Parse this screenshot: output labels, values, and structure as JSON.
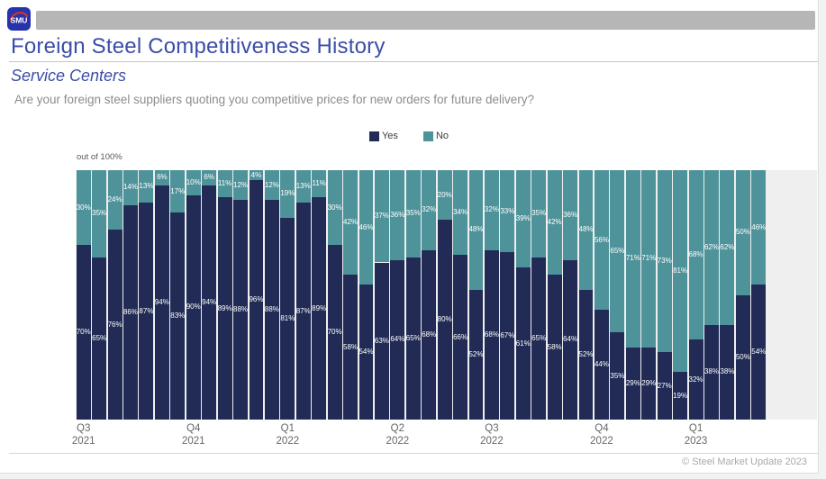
{
  "header": {
    "logo_text": "SMU",
    "title": "Foreign Steel Competitiveness History",
    "subtitle": "Service Centers",
    "question": "Are your foreign steel suppliers quoting you competitive prices for new orders for future delivery?"
  },
  "legend": {
    "yes": {
      "label": "Yes",
      "color": "#212b55"
    },
    "no": {
      "label": "No",
      "color": "#4f939a"
    }
  },
  "chart_data": {
    "type": "bar",
    "stacked": true,
    "axis_note": "out of 100%",
    "ylim": [
      0,
      100
    ],
    "bar_count": 44,
    "series": [
      {
        "name": "Yes",
        "color": "#212b55",
        "values": [
          70,
          65,
          76,
          86,
          87,
          94,
          83,
          90,
          94,
          89,
          88,
          96,
          88,
          81,
          87,
          89,
          70,
          58,
          54,
          63,
          64,
          65,
          68,
          80,
          66,
          52,
          68,
          67,
          61,
          65,
          58,
          64,
          52,
          44,
          35,
          29,
          29,
          27,
          19,
          32,
          38,
          38,
          50,
          54
        ]
      },
      {
        "name": "No",
        "color": "#4f939a",
        "values": [
          30,
          35,
          24,
          14,
          13,
          6,
          17,
          10,
          6,
          11,
          12,
          4,
          12,
          19,
          13,
          11,
          30,
          42,
          46,
          37,
          36,
          35,
          32,
          20,
          34,
          48,
          32,
          33,
          39,
          35,
          42,
          36,
          48,
          56,
          65,
          71,
          71,
          73,
          81,
          68,
          62,
          62,
          50,
          46
        ]
      }
    ],
    "x_ticks": [
      {
        "label": "Q3",
        "year": "2021",
        "bar_index": 0
      },
      {
        "label": "Q4",
        "year": "2021",
        "bar_index": 7
      },
      {
        "label": "Q1",
        "year": "2022",
        "bar_index": 13
      },
      {
        "label": "Q2",
        "year": "2022",
        "bar_index": 20
      },
      {
        "label": "Q3",
        "year": "2022",
        "bar_index": 26
      },
      {
        "label": "Q4",
        "year": "2022",
        "bar_index": 33
      },
      {
        "label": "Q1",
        "year": "2023",
        "bar_index": 39
      }
    ]
  },
  "footer": {
    "copyright": "© Steel Market Update 2023"
  },
  "colors": {
    "title_blue": "#3b4da8",
    "plot_background": "#efefef",
    "topbar_gray": "#b6b6b6"
  }
}
